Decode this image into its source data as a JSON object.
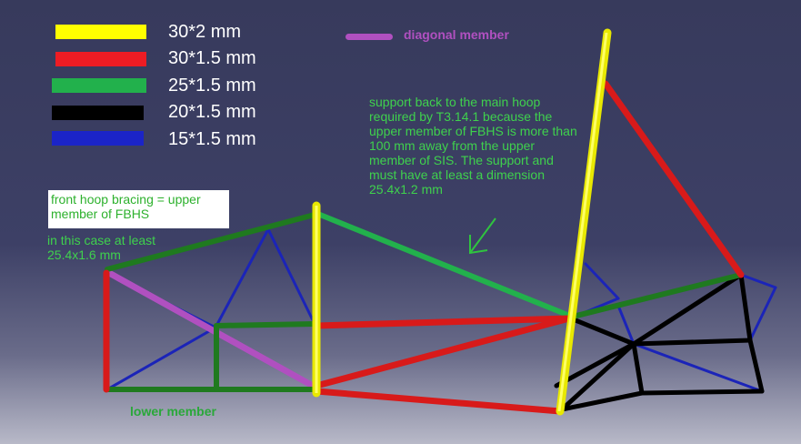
{
  "legend": [
    {
      "label": "30*2 mm",
      "color": "#ffff00"
    },
    {
      "label": "30*1.5 mm",
      "color": "#ee1c24"
    },
    {
      "label": "25*1.5 mm",
      "color": "#22b14c"
    },
    {
      "label": "20*1.5 mm",
      "color": "#000000"
    },
    {
      "label": "15*1.5 mm",
      "color": "#1b24c8"
    }
  ],
  "diagonal_legend": {
    "label": "diagonal member",
    "color": "#b050c0"
  },
  "notes": {
    "support": "support back to the main hoop required by T3.14.1 because the upper member of FBHS is more than 100 mm away from the upper member of SIS. The support  and must have at least a dimension 25.4x1.2 mm",
    "front_hoop": "front hoop bracing = upper member of FBHS",
    "minimum": "in this case at least 25.4x1.6 mm",
    "lower_member": "lower member"
  }
}
